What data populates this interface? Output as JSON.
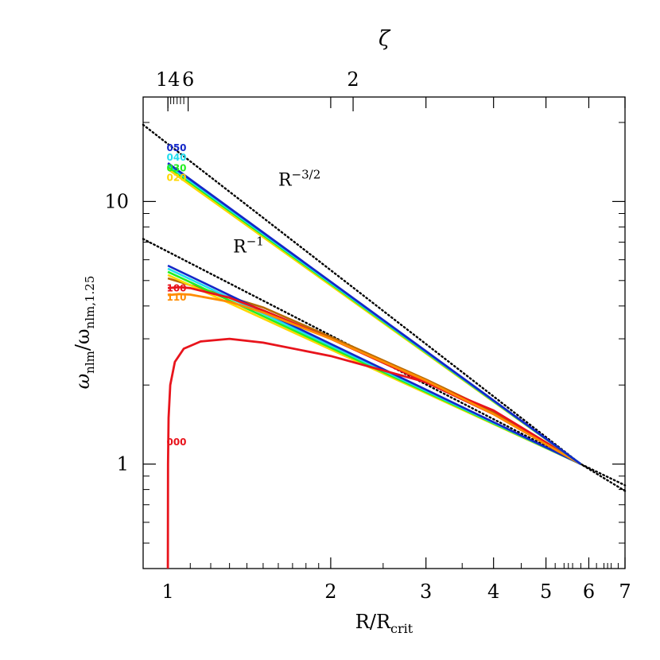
{
  "chart_data": {
    "type": "line",
    "title": "",
    "xlabel": {
      "base": "R/R",
      "sub": "crit"
    },
    "ylabel": {
      "base": "ω",
      "sub": "nlm",
      "mid": "/ω",
      "sub2": "nlm,1.25"
    },
    "top_xlabel": "ζ",
    "xscale": "log",
    "yscale": "log",
    "xlim": [
      0.9,
      7.0
    ],
    "ylim": [
      0.4,
      25.0
    ],
    "x_ticks": [
      1,
      2,
      3,
      4,
      5,
      6,
      7
    ],
    "x_tick_labels": [
      "1",
      "2",
      "3",
      "4",
      "5",
      "6",
      "7"
    ],
    "y_ticks": [
      1,
      10
    ],
    "y_tick_labels": [
      "1",
      "10"
    ],
    "top_ticks": [
      {
        "zeta": 14,
        "x": 1.0,
        "label": "14"
      },
      {
        "zeta": 6,
        "x": 1.09,
        "label": "6"
      },
      {
        "zeta": 2,
        "x": 2.2,
        "label": "2"
      }
    ],
    "reference_lines": [
      {
        "name": "R^-3/2",
        "points": [
          [
            0.9,
            19.6
          ],
          [
            5.8,
            1.0
          ],
          [
            7.0,
            0.79
          ]
        ]
      },
      {
        "name": "R^-1",
        "points": [
          [
            0.9,
            7.2
          ],
          [
            5.8,
            1.0
          ],
          [
            7.0,
            0.83
          ]
        ]
      }
    ],
    "annotations": [
      {
        "base": "R",
        "sup": "−3/2",
        "x": 1.6,
        "y": 11.5
      },
      {
        "base": "R",
        "sup": "−1",
        "x": 1.32,
        "y": 6.4
      }
    ],
    "series": [
      {
        "label": "000",
        "color": "#e8141c",
        "label_y": 1.22,
        "points": [
          [
            1.0,
            0.4
          ],
          [
            1.0005,
            1.0
          ],
          [
            1.003,
            1.5
          ],
          [
            1.01,
            2.0
          ],
          [
            1.03,
            2.45
          ],
          [
            1.07,
            2.75
          ],
          [
            1.15,
            2.93
          ],
          [
            1.3,
            3.0
          ],
          [
            1.5,
            2.9
          ],
          [
            2.0,
            2.58
          ],
          [
            3.0,
            2.05
          ],
          [
            4.0,
            1.6
          ],
          [
            5.0,
            1.21
          ],
          [
            5.8,
            1.0
          ]
        ]
      },
      {
        "label": "100",
        "color": "#e8141c",
        "label_y": 4.7,
        "points": [
          [
            1.0,
            4.68
          ],
          [
            1.05,
            4.72
          ],
          [
            1.1,
            4.68
          ],
          [
            1.3,
            4.3
          ],
          [
            1.5,
            3.85
          ],
          [
            2.0,
            3.0
          ],
          [
            3.0,
            2.05
          ],
          [
            4.0,
            1.55
          ],
          [
            5.0,
            1.19
          ],
          [
            5.8,
            1.0
          ]
        ]
      },
      {
        "label": "110",
        "color": "#ff8c00",
        "label_y": 4.35,
        "points": [
          [
            1.0,
            4.4
          ],
          [
            1.05,
            4.44
          ],
          [
            1.1,
            4.42
          ],
          [
            1.3,
            4.15
          ],
          [
            1.5,
            3.78
          ],
          [
            2.0,
            3.0
          ],
          [
            3.0,
            2.08
          ],
          [
            4.0,
            1.55
          ],
          [
            5.0,
            1.19
          ],
          [
            5.8,
            1.0
          ]
        ]
      },
      {
        "label": "020",
        "color": "#ffd700",
        "label_y": 12.4,
        "points": [
          [
            1.0,
            13.3
          ],
          [
            5.8,
            1.0
          ]
        ]
      },
      {
        "label": "030",
        "color": "#22ee22",
        "label_y": 13.5,
        "points": [
          [
            1.0,
            13.6
          ],
          [
            5.8,
            1.0
          ]
        ]
      },
      {
        "label": "040",
        "color": "#22ddee",
        "label_y": 14.8,
        "points": [
          [
            1.0,
            13.8
          ],
          [
            5.8,
            1.0
          ]
        ]
      },
      {
        "label": "050",
        "color": "#1428c8",
        "label_y": 16.1,
        "points": [
          [
            1.0,
            14.0
          ],
          [
            5.8,
            1.0
          ]
        ]
      }
    ],
    "extra_lines": [
      {
        "color": "#b86a00",
        "points": [
          [
            1.0,
            5.1
          ],
          [
            1.5,
            3.95
          ],
          [
            2.0,
            3.05
          ],
          [
            3.0,
            2.1
          ],
          [
            4.0,
            1.58
          ],
          [
            5.0,
            1.2
          ],
          [
            5.8,
            1.0
          ]
        ]
      },
      {
        "color": "#ffd700",
        "points": [
          [
            1.0,
            5.25
          ],
          [
            5.8,
            1.0
          ]
        ]
      },
      {
        "color": "#22ee22",
        "points": [
          [
            1.0,
            5.4
          ],
          [
            5.8,
            1.0
          ]
        ]
      },
      {
        "color": "#22ddee",
        "points": [
          [
            1.0,
            5.55
          ],
          [
            5.8,
            1.0
          ]
        ]
      },
      {
        "color": "#1428c8",
        "points": [
          [
            1.0,
            5.7
          ],
          [
            5.8,
            1.0
          ]
        ]
      }
    ],
    "grid": false,
    "legend": "none"
  }
}
